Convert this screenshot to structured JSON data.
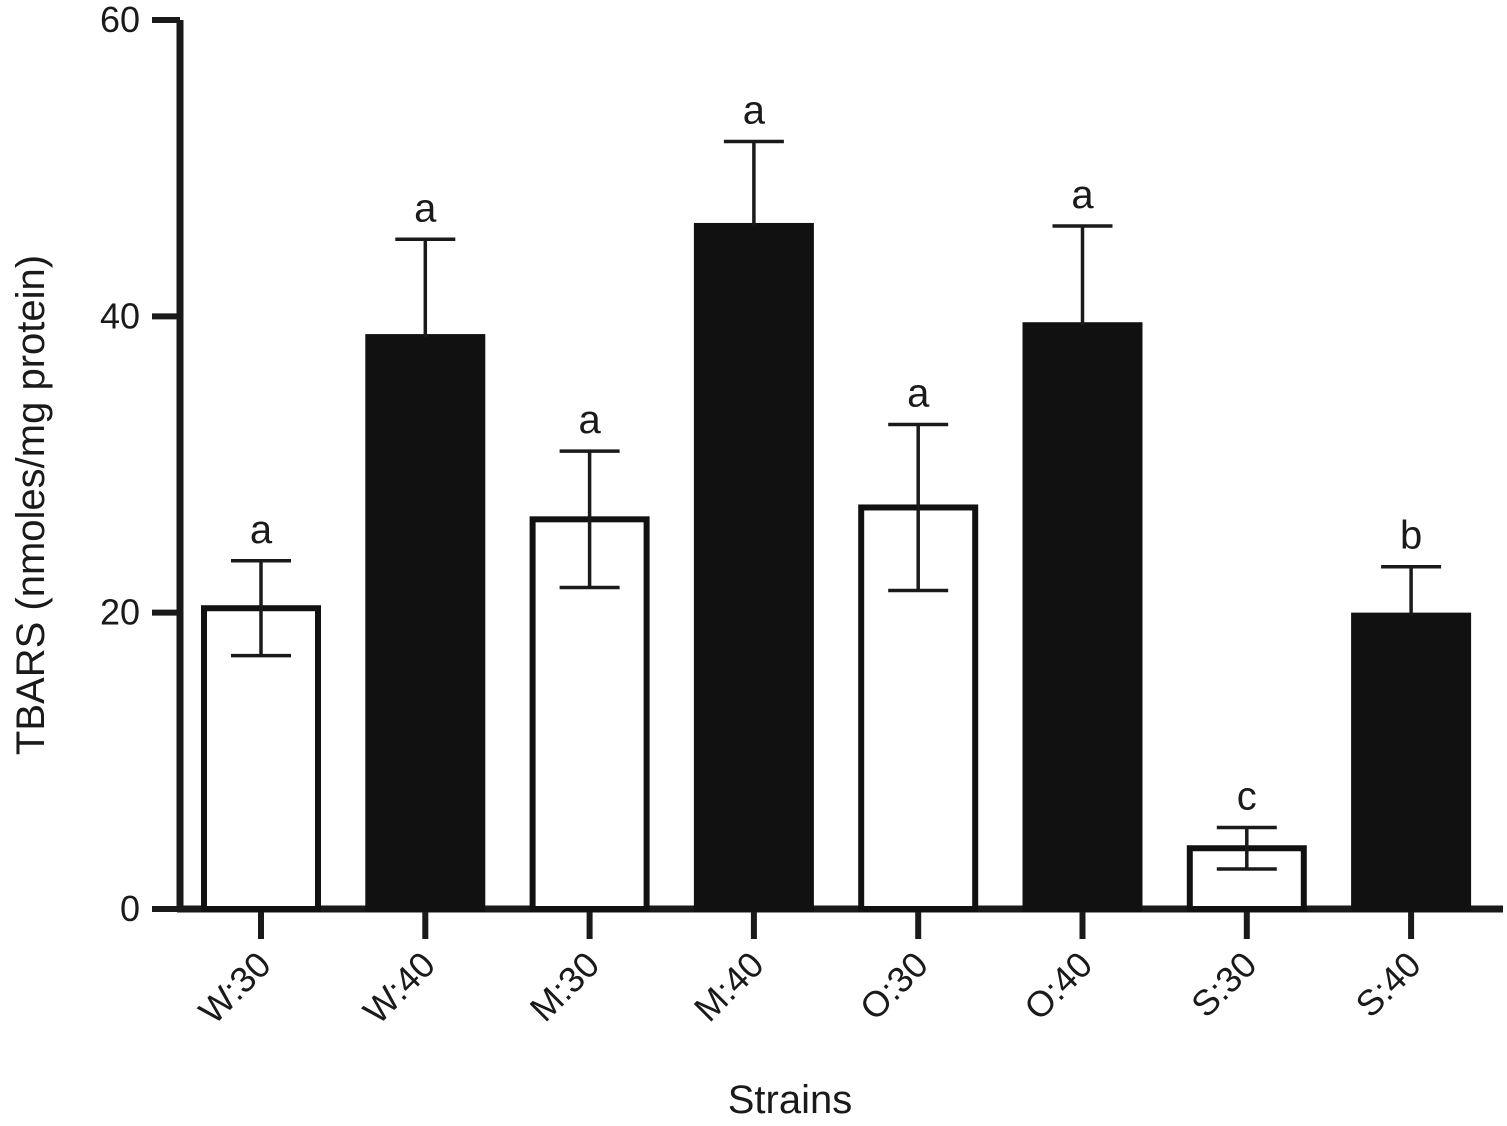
{
  "chart_data": {
    "type": "bar",
    "title": "",
    "xlabel": "Strains",
    "ylabel": "TBARS (nmoles/mg protein)",
    "ylim": [
      0,
      60
    ],
    "yticks": [
      0,
      20,
      40,
      60
    ],
    "grid": false,
    "categories": [
      "W:30",
      "W:40",
      "M:30",
      "M:40",
      "O:30",
      "O:40",
      "S:30",
      "S:40"
    ],
    "values": [
      20.3,
      38.6,
      26.3,
      46.1,
      27.1,
      39.4,
      4.1,
      19.8
    ],
    "errors": [
      3.2,
      6.6,
      4.6,
      5.7,
      5.6,
      6.7,
      1.4,
      3.3
    ],
    "fills": [
      "white",
      "black",
      "white",
      "black",
      "white",
      "black",
      "white",
      "black"
    ],
    "significance": [
      "a",
      "a",
      "a",
      "a",
      "a",
      "a",
      "c",
      "b"
    ]
  }
}
